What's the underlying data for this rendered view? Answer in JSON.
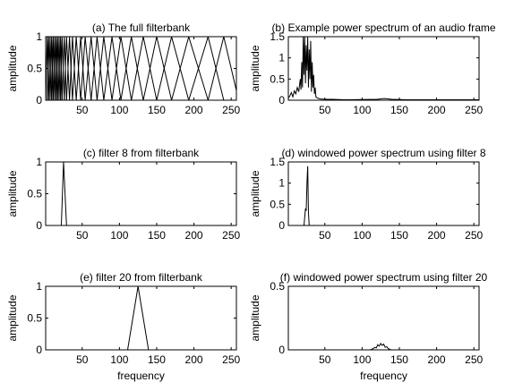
{
  "figure": {
    "background": "#ffffff",
    "line_color": "#000000"
  },
  "chart_data": [
    {
      "id": "a",
      "type": "line",
      "title": "(a) The full filterbank",
      "xlabel": "",
      "ylabel": "amplitude",
      "xlim": [
        1,
        257
      ],
      "ylim": [
        0,
        1
      ],
      "xticks": [
        50,
        100,
        150,
        200,
        250
      ],
      "yticks": [
        0,
        0.5,
        1
      ],
      "xtick_labels": [
        "50",
        "100",
        "150",
        "200",
        "250"
      ],
      "ytick_labels": [
        "0",
        "0.5",
        "1"
      ],
      "filter_centers": [
        3,
        5,
        7,
        9,
        11,
        13,
        15,
        17,
        19,
        21,
        23,
        26,
        29,
        33,
        37,
        42,
        48,
        54,
        62,
        70,
        79,
        90,
        102,
        116,
        132,
        150,
        170,
        193,
        219,
        240
      ],
      "filter_start": 1,
      "filter_end": 260
    },
    {
      "id": "b",
      "type": "line",
      "title": "(b) Example power spectrum of an audio frame",
      "xlabel": "",
      "ylabel": "amplitude",
      "xlim": [
        1,
        257
      ],
      "ylim": [
        0,
        1.5
      ],
      "xticks": [
        50,
        100,
        150,
        200,
        250
      ],
      "yticks": [
        0,
        0.5,
        1,
        1.5
      ],
      "xtick_labels": [
        "50",
        "100",
        "150",
        "200",
        "250"
      ],
      "ytick_labels": [
        "0",
        "0.5",
        "1",
        "1.5"
      ],
      "series": [
        {
          "x": [
            1,
            3,
            5,
            7,
            9,
            11,
            13,
            15,
            17,
            18,
            19,
            20,
            21,
            22,
            23,
            24,
            25,
            26,
            27,
            28,
            29,
            30,
            31,
            32,
            33,
            34,
            35,
            36,
            37,
            38,
            40,
            44,
            50,
            60,
            80,
            100,
            120,
            130,
            140,
            160,
            180,
            200,
            220,
            240,
            257
          ],
          "y": [
            0.05,
            0.1,
            0.18,
            0.08,
            0.22,
            0.15,
            0.3,
            0.2,
            0.5,
            0.25,
            0.9,
            0.3,
            1.5,
            0.6,
            1.5,
            0.4,
            1.3,
            0.7,
            1.5,
            0.3,
            1.2,
            0.5,
            1.4,
            0.2,
            0.9,
            0.3,
            0.6,
            0.15,
            0.3,
            0.08,
            0.05,
            0.03,
            0.02,
            0.02,
            0.01,
            0.015,
            0.02,
            0.04,
            0.02,
            0.01,
            0.01,
            0.01,
            0.01,
            0.01,
            0.01
          ]
        }
      ]
    },
    {
      "id": "c",
      "type": "line",
      "title": "(c) filter 8 from filterbank",
      "xlabel": "",
      "ylabel": "amplitude",
      "xlim": [
        1,
        257
      ],
      "ylim": [
        0,
        1
      ],
      "xticks": [
        50,
        100,
        150,
        200,
        250
      ],
      "yticks": [
        0,
        0.5,
        1
      ],
      "xtick_labels": [
        "50",
        "100",
        "150",
        "200",
        "250"
      ],
      "ytick_labels": [
        "0",
        "0.5",
        "1"
      ],
      "series": [
        {
          "x": [
            22,
            25,
            29
          ],
          "y": [
            0,
            1,
            0
          ]
        }
      ]
    },
    {
      "id": "d",
      "type": "line",
      "title": "(d) windowed power spectrum using filter 8",
      "xlabel": "",
      "ylabel": "amplitude",
      "xlim": [
        1,
        257
      ],
      "ylim": [
        0,
        1.5
      ],
      "xticks": [
        50,
        100,
        150,
        200,
        250
      ],
      "yticks": [
        0,
        0.5,
        1,
        1.5
      ],
      "xtick_labels": [
        "50",
        "100",
        "150",
        "200",
        "250"
      ],
      "ytick_labels": [
        "0",
        "0.5",
        "1",
        "1.5"
      ],
      "series": [
        {
          "x": [
            22,
            23,
            24,
            25,
            26,
            27,
            28,
            29
          ],
          "y": [
            0,
            0.2,
            0.4,
            0.35,
            1.0,
            1.4,
            0.3,
            0
          ]
        }
      ]
    },
    {
      "id": "e",
      "type": "line",
      "title": "(e) filter 20 from filterbank",
      "xlabel": "frequency",
      "ylabel": "amplitude",
      "xlim": [
        1,
        257
      ],
      "ylim": [
        0,
        1
      ],
      "xticks": [
        50,
        100,
        150,
        200,
        250
      ],
      "yticks": [
        0,
        0.5,
        1
      ],
      "xtick_labels": [
        "50",
        "100",
        "150",
        "200",
        "250"
      ],
      "ytick_labels": [
        "0",
        "0.5",
        "1"
      ],
      "series": [
        {
          "x": [
            111,
            125,
            139
          ],
          "y": [
            0,
            1,
            0
          ]
        }
      ]
    },
    {
      "id": "f",
      "type": "line",
      "title": "(f) windowed power spectrum using filter 20",
      "xlabel": "frequency",
      "ylabel": "amplitude",
      "xlim": [
        1,
        257
      ],
      "ylim": [
        0,
        0.5
      ],
      "xticks": [
        50,
        100,
        150,
        200,
        250
      ],
      "yticks": [
        0,
        0.5
      ],
      "xtick_labels": [
        "50",
        "100",
        "150",
        "200",
        "250"
      ],
      "ytick_labels": [
        "0",
        "0.5"
      ],
      "series": [
        {
          "x": [
            111,
            113,
            115,
            117,
            119,
            121,
            123,
            125,
            127,
            129,
            131,
            133,
            135,
            137,
            139
          ],
          "y": [
            0,
            0.005,
            0.01,
            0.02,
            0.015,
            0.04,
            0.03,
            0.05,
            0.035,
            0.045,
            0.02,
            0.025,
            0.01,
            0.005,
            0
          ]
        }
      ]
    }
  ]
}
